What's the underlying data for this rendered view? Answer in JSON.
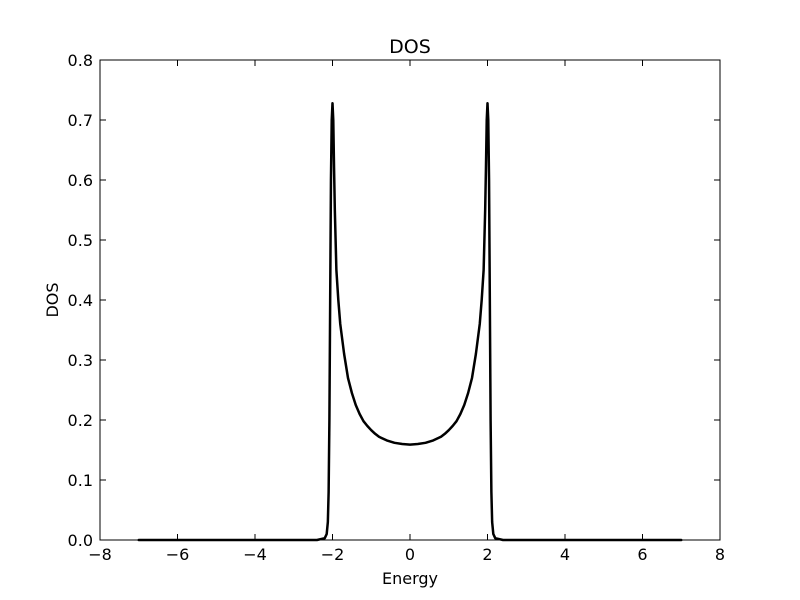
{
  "chart_data": {
    "type": "line",
    "title": "DOS",
    "xlabel": "Energy",
    "ylabel": "DOS",
    "xlim": [
      -8,
      8
    ],
    "ylim": [
      0,
      0.8
    ],
    "xticks": [
      -8,
      -6,
      -4,
      -2,
      0,
      2,
      4,
      6,
      8
    ],
    "yticks": [
      0.0,
      0.1,
      0.2,
      0.3,
      0.4,
      0.5,
      0.6,
      0.7,
      0.8
    ],
    "xtick_labels": [
      "−8",
      "−6",
      "−4",
      "−2",
      "0",
      "2",
      "4",
      "6",
      "8"
    ],
    "ytick_labels": [
      "0.0",
      "0.1",
      "0.2",
      "0.3",
      "0.4",
      "0.5",
      "0.6",
      "0.7",
      "0.8"
    ],
    "grid": false,
    "line_color": "#000000",
    "series": [
      {
        "x": [
          -7.0,
          -3.0,
          -2.4,
          -2.2,
          -2.15,
          -2.12,
          -2.1,
          -2.08,
          -2.06,
          -2.04,
          -2.02,
          -2.0,
          -1.98,
          -1.96,
          -1.94,
          -1.9,
          -1.85,
          -1.8,
          -1.7,
          -1.6,
          -1.5,
          -1.4,
          -1.3,
          -1.2,
          -1.1,
          -1.0,
          -0.9,
          -0.8,
          -0.6,
          -0.4,
          -0.2,
          0.0,
          0.2,
          0.4,
          0.6,
          0.8,
          0.9,
          1.0,
          1.1,
          1.2,
          1.3,
          1.4,
          1.5,
          1.6,
          1.7,
          1.8,
          1.85,
          1.9,
          1.94,
          1.96,
          1.98,
          2.0,
          2.02,
          2.04,
          2.06,
          2.08,
          2.1,
          2.12,
          2.15,
          2.2,
          2.4,
          3.0,
          7.0
        ],
        "y": [
          0.0,
          0.0,
          0.0,
          0.003,
          0.01,
          0.03,
          0.08,
          0.2,
          0.4,
          0.6,
          0.7,
          0.728,
          0.7,
          0.62,
          0.55,
          0.45,
          0.4,
          0.36,
          0.31,
          0.27,
          0.245,
          0.225,
          0.21,
          0.198,
          0.19,
          0.183,
          0.177,
          0.172,
          0.166,
          0.162,
          0.16,
          0.159,
          0.16,
          0.162,
          0.166,
          0.172,
          0.177,
          0.183,
          0.19,
          0.198,
          0.21,
          0.225,
          0.245,
          0.27,
          0.31,
          0.36,
          0.4,
          0.45,
          0.55,
          0.62,
          0.7,
          0.728,
          0.7,
          0.6,
          0.4,
          0.2,
          0.08,
          0.03,
          0.01,
          0.003,
          0.0,
          0.0,
          0.0
        ]
      }
    ]
  }
}
